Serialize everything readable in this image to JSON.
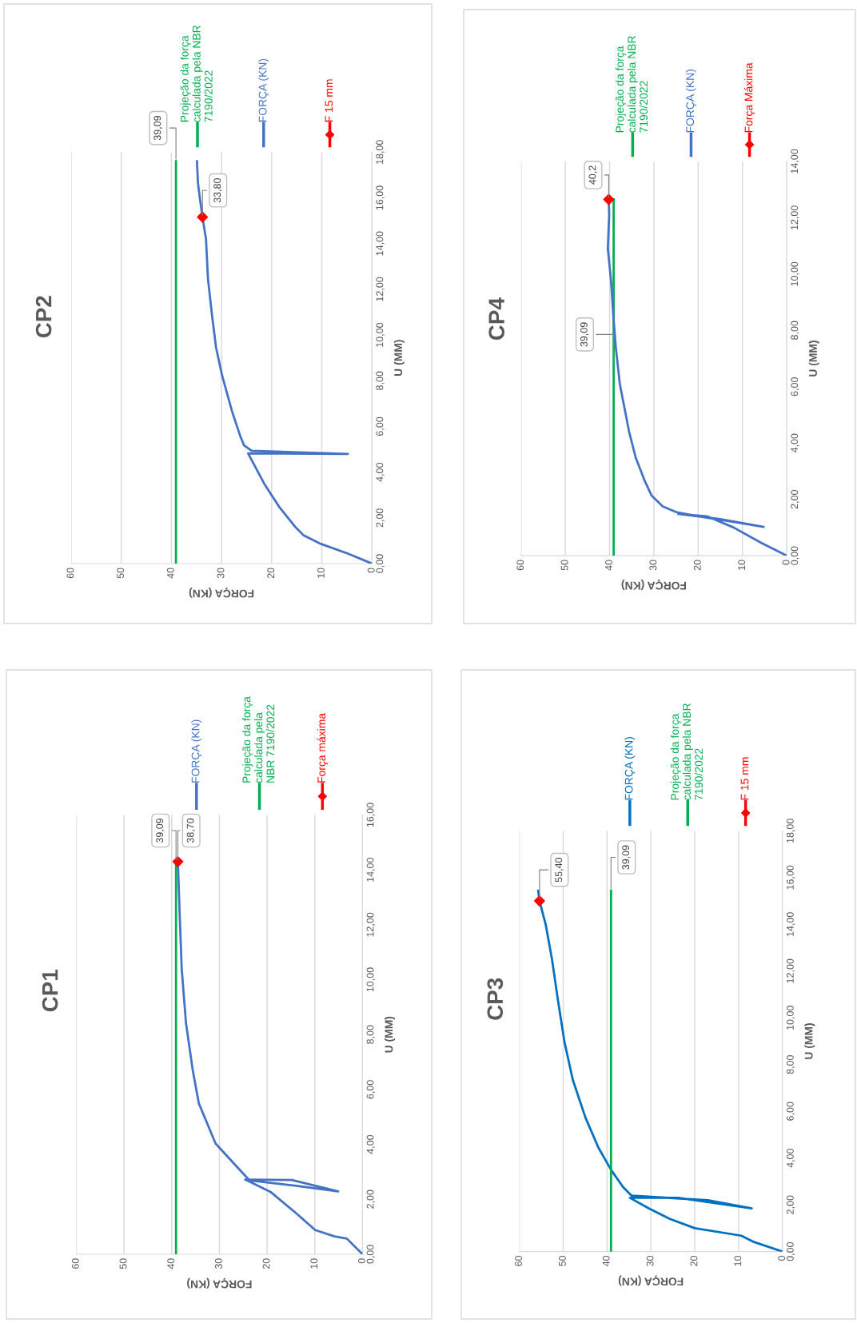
{
  "chart_data": [
    {
      "type": "line",
      "title": "CP1",
      "xlabel": "FORÇA (KN)",
      "ylabel": "U (MM)",
      "legend": "top",
      "grid": "x",
      "ylim": [
        0,
        16
      ],
      "yticks": [
        {
          "value": 0,
          "label": "0,00"
        },
        {
          "value": 2,
          "label": "2,00"
        },
        {
          "value": 4,
          "label": "4,00"
        },
        {
          "value": 6,
          "label": "6,00"
        },
        {
          "value": 8,
          "label": "8,00"
        },
        {
          "value": 10,
          "label": "10,00"
        },
        {
          "value": 12,
          "label": "12,00"
        },
        {
          "value": 14,
          "label": "14,00"
        },
        {
          "value": 16,
          "label": "16,00"
        }
      ],
      "xlim": [
        60,
        0
      ],
      "xticks": [
        60,
        50,
        40,
        30,
        20,
        10,
        0
      ],
      "series": [
        {
          "name": "FORÇA (KN)",
          "type": "line",
          "color": "#4472c4",
          "values": [
            0,
            0.57,
            0.65,
            0.88,
            1.49,
            2.26,
            2.72,
            2.7,
            2.29,
            2.49,
            2.69,
            3.18,
            4.03,
            5.49,
            6.72,
            8.42,
            10.4,
            12.26,
            14.3
          ],
          "x": [
            0,
            3.3,
            5.9,
            9.9,
            13.9,
            19.2,
            24.6,
            14.8,
            5.1,
            13.9,
            23.7,
            26.3,
            30.8,
            34.3,
            35.6,
            37.0,
            37.9,
            38.3,
            38.7
          ]
        },
        {
          "name": "Projeção da força\ncalculada pela\nNBR 7190/2022",
          "type": "line",
          "color": "#00b050",
          "values": [
            0,
            14.3
          ],
          "x": [
            39.09,
            39.09
          ]
        },
        {
          "name": "Força máxima",
          "type": "scatter",
          "marker": "diamond",
          "color": "#ff0000",
          "values": [
            14.3
          ],
          "x": [
            38.7
          ]
        }
      ],
      "annotations": [
        {
          "text": "39,09",
          "x": 39.09,
          "y": 14.3
        },
        {
          "text": "38,70",
          "x": 38.7,
          "y": 14.3
        }
      ]
    },
    {
      "type": "line",
      "title": "CP2",
      "xlabel": "FORÇA (KN)",
      "ylabel": "U (MM)",
      "legend": "top",
      "grid": "x",
      "ylim": [
        0,
        18
      ],
      "yticks": [
        {
          "value": 0,
          "label": "0,00"
        },
        {
          "value": 2,
          "label": "2,00"
        },
        {
          "value": 4,
          "label": "4,00"
        },
        {
          "value": 6,
          "label": "6,00"
        },
        {
          "value": 8,
          "label": "8,00"
        },
        {
          "value": 10,
          "label": "10,00"
        },
        {
          "value": 12,
          "label": "12,00"
        },
        {
          "value": 14,
          "label": "14,00"
        },
        {
          "value": 16,
          "label": "16,00"
        },
        {
          "value": 18,
          "label": "18,00"
        }
      ],
      "xlim": [
        60,
        0
      ],
      "xticks": [
        60,
        50,
        40,
        30,
        20,
        10,
        0
      ],
      "series": [
        {
          "name": "Projeção da força\ncalculada pela NBR\n7190/2022",
          "type": "line",
          "color": "#00b050",
          "values": [
            0,
            17.6
          ],
          "x": [
            39.09,
            39.09
          ]
        },
        {
          "name": "FORÇA (KN)",
          "type": "line",
          "color": "#4472c4",
          "values": [
            0,
            0.44,
            0.88,
            1.23,
            1.58,
            2.45,
            3.5,
            4.82,
            4.8,
            4.94,
            5.17,
            5.6,
            6.66,
            8.24,
            9.46,
            10.87,
            12.44,
            14.2,
            15.16,
            15.95,
            16.65,
            17.6
          ],
          "x": [
            0,
            4.8,
            10.4,
            13.6,
            15.2,
            18.4,
            21.5,
            24.7,
            4.8,
            24.0,
            25.5,
            26.3,
            27.9,
            29.9,
            31.1,
            31.9,
            32.7,
            33.1,
            33.8,
            34.3,
            34.7,
            34.9
          ]
        },
        {
          "name": "F 15 mm",
          "type": "scatter",
          "marker": "diamond",
          "color": "#ff0000",
          "values": [
            15.16
          ],
          "x": [
            33.8
          ]
        }
      ],
      "annotations": [
        {
          "text": "39,09",
          "x": 39.09,
          "y": 17.6
        },
        {
          "text": "33,80",
          "x": 33.8,
          "y": 15.16
        }
      ]
    },
    {
      "type": "line",
      "title": "CP3",
      "xlabel": "FORÇA (KN)",
      "ylabel": "U (MM)",
      "legend": "top",
      "grid": "x",
      "ylim": [
        0,
        18
      ],
      "yticks": [
        {
          "value": 0,
          "label": "0,00"
        },
        {
          "value": 2,
          "label": "2,00"
        },
        {
          "value": 4,
          "label": "4,00"
        },
        {
          "value": 6,
          "label": "6,00"
        },
        {
          "value": 8,
          "label": "8,00"
        },
        {
          "value": 10,
          "label": "10,00"
        },
        {
          "value": 12,
          "label": "12,00"
        },
        {
          "value": 14,
          "label": "14,00"
        },
        {
          "value": 16,
          "label": "16,00"
        },
        {
          "value": 18,
          "label": "18,00"
        }
      ],
      "xlim": [
        60,
        0
      ],
      "xticks": [
        60,
        50,
        40,
        30,
        20,
        10,
        0
      ],
      "series": [
        {
          "name": "FORÇA (KN)",
          "type": "line",
          "color": "#0070c0",
          "values": [
            0,
            0.41,
            0.68,
            1.0,
            1.4,
            1.85,
            2.3,
            2.3,
            1.85,
            2.2,
            2.39,
            2.75,
            3.47,
            4.46,
            5.72,
            7.34,
            8.96,
            10.76,
            12.56,
            14.0,
            15.0,
            15.44
          ],
          "x": [
            0,
            6.5,
            9.4,
            20,
            25.7,
            30.5,
            34.8,
            23.8,
            7.0,
            17,
            34.4,
            36.3,
            39,
            42,
            44.9,
            47.8,
            49.7,
            51.2,
            52.6,
            54.0,
            55.4,
            55.7
          ]
        },
        {
          "name": "Projeção da força\ncalculada pela NBR\n7190/2022",
          "type": "line",
          "color": "#00b050",
          "values": [
            0,
            15.44
          ],
          "x": [
            39.09,
            39.09
          ]
        },
        {
          "name": "F 15 mm",
          "type": "scatter",
          "marker": "diamond",
          "color": "#ff0000",
          "values": [
            15.0
          ],
          "x": [
            55.4
          ]
        }
      ],
      "annotations": [
        {
          "text": "55,40",
          "x": 55.4,
          "y": 15.0
        },
        {
          "text": "39,09",
          "x": 39.09,
          "y": 15.44
        }
      ]
    },
    {
      "type": "line",
      "title": "CP4",
      "xlabel": "FORÇA (KN)",
      "ylabel": "U (MM)",
      "legend": "top",
      "grid": "x",
      "ylim": [
        0,
        14
      ],
      "yticks": [
        {
          "value": 0,
          "label": "0,00"
        },
        {
          "value": 2,
          "label": "2,00"
        },
        {
          "value": 4,
          "label": "4,00"
        },
        {
          "value": 6,
          "label": "6,00"
        },
        {
          "value": 8,
          "label": "8,00"
        },
        {
          "value": 10,
          "label": "10,00"
        },
        {
          "value": 12,
          "label": "12,00"
        },
        {
          "value": 14,
          "label": "14,00"
        }
      ],
      "xlim": [
        60,
        0
      ],
      "xticks": [
        60,
        50,
        40,
        30,
        20,
        10,
        0
      ],
      "series": [
        {
          "name": "Projeção da força\ncalculada pela NBR\n7190/2022",
          "type": "line",
          "color": "#00b050",
          "values": [
            0,
            12.65
          ],
          "x": [
            39.09,
            39.09
          ]
        },
        {
          "name": "FORÇA (KN)",
          "type": "line",
          "color": "#4472c4",
          "values": [
            0,
            0.45,
            1.0,
            1.4,
            1.48,
            1.3,
            1.02,
            1.2,
            1.4,
            1.55,
            1.75,
            2.13,
            2.63,
            3.48,
            4.4,
            6.1,
            7.4,
            8.4,
            9.8,
            10.9,
            12.1,
            12.65
          ],
          "x": [
            0,
            5.7,
            12,
            18,
            24.5,
            15,
            5.2,
            12,
            20,
            25,
            28,
            30.5,
            32.0,
            34.1,
            35.6,
            37.7,
            38.6,
            39.1,
            39.7,
            40.4,
            40.1,
            40.2
          ]
        },
        {
          "name": "Força Máxima",
          "type": "scatter",
          "marker": "diamond",
          "color": "#ff0000",
          "values": [
            12.65
          ],
          "x": [
            40.2
          ]
        }
      ],
      "annotations": [
        {
          "text": "39,09",
          "x": 39.09,
          "y": 6.75
        },
        {
          "text": "40,2",
          "x": 40.2,
          "y": 12.65
        }
      ]
    }
  ]
}
